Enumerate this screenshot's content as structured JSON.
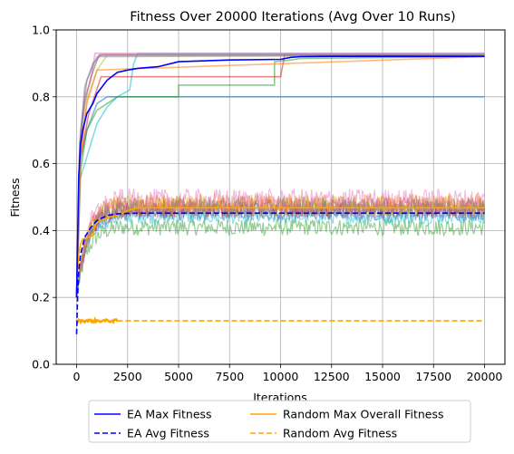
{
  "chart_data": {
    "type": "line",
    "title": "Fitness Over 20000 Iterations (Avg Over 10 Runs)",
    "xlabel": "Iterations",
    "ylabel": "Fitness",
    "xlim": [
      -1000,
      21000
    ],
    "ylim": [
      0.0,
      1.0
    ],
    "grid": true,
    "legend_placement": "bottom-center, below plot, 2 columns",
    "x_ticks": [
      0,
      2500,
      5000,
      7500,
      10000,
      12500,
      15000,
      17500,
      20000
    ],
    "x_tick_labels": [
      "0",
      "2500",
      "5000",
      "7500",
      "10000",
      "12500",
      "15000",
      "17500",
      "20000"
    ],
    "y_ticks": [
      0.0,
      0.2,
      0.4,
      0.6,
      0.8,
      1.0
    ],
    "y_tick_labels": [
      "0.0",
      "0.2",
      "0.4",
      "0.6",
      "0.8",
      "1.0"
    ],
    "legend": [
      {
        "name": "EA Max Fitness",
        "color": "#0000ff",
        "dash": "solid"
      },
      {
        "name": "EA Avg Fitness",
        "color": "#0000ff",
        "dash": "dashed"
      },
      {
        "name": "Random Max Overall Fitness",
        "color": "#ffa500",
        "dash": "solid"
      },
      {
        "name": "Random Avg Fitness",
        "color": "#ffa500",
        "dash": "dashed"
      }
    ],
    "series": [
      {
        "name": "EA Max Fitness",
        "color": "#0000ff",
        "dash": "solid",
        "width": 1.6,
        "x": [
          0,
          100,
          200,
          300,
          500,
          800,
          1000,
          1500,
          2000,
          2500,
          3000,
          4000,
          5000,
          7500,
          10000,
          10500,
          11000,
          12500,
          15000,
          20000
        ],
        "y": [
          0.2,
          0.56,
          0.66,
          0.7,
          0.75,
          0.78,
          0.81,
          0.85,
          0.873,
          0.88,
          0.885,
          0.89,
          0.905,
          0.91,
          0.912,
          0.918,
          0.92,
          0.921,
          0.921,
          0.921
        ]
      },
      {
        "name": "EA Avg Fitness",
        "color": "#0000ff",
        "dash": "dashed",
        "width": 1.6,
        "x": [
          0,
          50,
          100,
          200,
          400,
          700,
          1000,
          1500,
          2000,
          3000,
          5000,
          7500,
          10000,
          15000,
          20000
        ],
        "y": [
          0.09,
          0.2,
          0.28,
          0.33,
          0.38,
          0.41,
          0.43,
          0.445,
          0.45,
          0.452,
          0.452,
          0.452,
          0.452,
          0.452,
          0.452
        ]
      },
      {
        "name": "Random Max Overall Fitness",
        "color": "#ffa500",
        "dash": "solid",
        "width": 1.6,
        "x": [
          0,
          50,
          100,
          200,
          300,
          400,
          600,
          800,
          900,
          1200,
          1600,
          2000,
          2500,
          3000,
          4000,
          5000,
          10000,
          20000
        ],
        "y": [
          0.2,
          0.28,
          0.33,
          0.36,
          0.375,
          0.375,
          0.38,
          0.385,
          0.42,
          0.43,
          0.44,
          0.445,
          0.46,
          0.468,
          0.468,
          0.468,
          0.468,
          0.468
        ]
      },
      {
        "name": "Random Avg Fitness",
        "color": "#ffa500",
        "dash": "dashed",
        "width": 1.6,
        "x": [
          0,
          2000,
          20000
        ],
        "y": [
          0.13,
          0.13,
          0.13
        ]
      }
    ],
    "run_traces_max": [
      {
        "color": "#17becf",
        "x": [
          0,
          150,
          500,
          1000,
          1500,
          2000,
          2600,
          2800,
          3000,
          20000
        ],
        "y": [
          0.2,
          0.55,
          0.62,
          0.72,
          0.77,
          0.8,
          0.82,
          0.9,
          0.93,
          0.93
        ]
      },
      {
        "color": "#1f77b4",
        "x": [
          0,
          150,
          500,
          1000,
          1500,
          2000,
          3000,
          20000
        ],
        "y": [
          0.2,
          0.6,
          0.7,
          0.78,
          0.8,
          0.8,
          0.8,
          0.8
        ]
      },
      {
        "color": "#2ca02c",
        "x": [
          0,
          200,
          500,
          1000,
          2000,
          5000,
          5000,
          9700,
          9700,
          10500,
          11000,
          20000
        ],
        "y": [
          0.2,
          0.58,
          0.7,
          0.76,
          0.8,
          0.8,
          0.835,
          0.835,
          0.905,
          0.91,
          0.915,
          0.92
        ]
      },
      {
        "color": "#d62728",
        "x": [
          0,
          200,
          600,
          1200,
          3000,
          6000,
          10000,
          10200,
          20000
        ],
        "y": [
          0.2,
          0.62,
          0.75,
          0.86,
          0.86,
          0.86,
          0.86,
          0.925,
          0.925
        ]
      },
      {
        "color": "#e377c2",
        "x": [
          0,
          150,
          400,
          700,
          900,
          2000,
          20000
        ],
        "y": [
          0.2,
          0.66,
          0.8,
          0.85,
          0.93,
          0.93,
          0.93
        ]
      },
      {
        "color": "#8c564b",
        "x": [
          0,
          150,
          400,
          700,
          1100,
          20000
        ],
        "y": [
          0.2,
          0.64,
          0.78,
          0.86,
          0.925,
          0.925
        ]
      },
      {
        "color": "#bcbd22",
        "x": [
          0,
          200,
          500,
          1000,
          1500,
          20000
        ],
        "y": [
          0.2,
          0.62,
          0.79,
          0.88,
          0.925,
          0.925
        ]
      },
      {
        "color": "#9467bd",
        "x": [
          0,
          150,
          400,
          800,
          1200,
          20000
        ],
        "y": [
          0.2,
          0.66,
          0.83,
          0.9,
          0.926,
          0.926
        ]
      },
      {
        "color": "#7f7f7f",
        "x": [
          0,
          200,
          500,
          1000,
          20000
        ],
        "y": [
          0.2,
          0.7,
          0.85,
          0.92,
          0.924
        ]
      },
      {
        "color": "#ff7f0e",
        "x": [
          0,
          150,
          500,
          1000,
          20000
        ],
        "y": [
          0.2,
          0.6,
          0.78,
          0.88,
          0.92
        ]
      }
    ],
    "run_traces_avg": [
      {
        "color": "#2ca02c",
        "level": 0.41,
        "amp": 0.025
      },
      {
        "color": "#17becf",
        "level": 0.44,
        "amp": 0.02
      },
      {
        "color": "#1f77b4",
        "level": 0.45,
        "amp": 0.02
      },
      {
        "color": "#9467bd",
        "level": 0.46,
        "amp": 0.025
      },
      {
        "color": "#8c564b",
        "level": 0.465,
        "amp": 0.025
      },
      {
        "color": "#d62728",
        "level": 0.47,
        "amp": 0.03
      },
      {
        "color": "#bcbd22",
        "level": 0.475,
        "amp": 0.03
      },
      {
        "color": "#ff7f0e",
        "level": 0.48,
        "amp": 0.03
      },
      {
        "color": "#e377c2",
        "level": 0.49,
        "amp": 0.035
      },
      {
        "color": "#7f7f7f",
        "level": 0.47,
        "amp": 0.025
      }
    ]
  }
}
